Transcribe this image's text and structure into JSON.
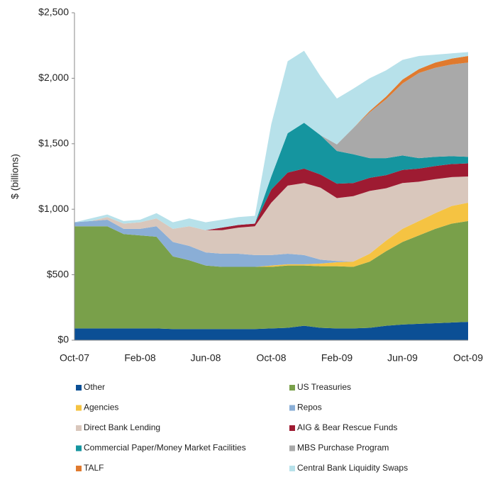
{
  "chart_data": {
    "type": "stacked_area",
    "ylabel": "$ (billions)",
    "categories": [
      "Oct-07",
      null,
      null,
      null,
      "Feb-08",
      null,
      null,
      null,
      "Jun-08",
      null,
      null,
      null,
      "Oct-08",
      null,
      null,
      null,
      "Feb-09",
      null,
      null,
      null,
      "Jun-09",
      null,
      null,
      null,
      "Oct-09"
    ],
    "ylim": [
      0,
      2500
    ],
    "yticks": [
      {
        "value": 0,
        "label": "$0"
      },
      {
        "value": 500,
        "label": "$500"
      },
      {
        "value": 1000,
        "label": "$1,000"
      },
      {
        "value": 1500,
        "label": "$1,500"
      },
      {
        "value": 2000,
        "label": "$2,000"
      },
      {
        "value": 2500,
        "label": "$2,500"
      }
    ],
    "series": [
      {
        "name": "Other",
        "color": "#0b4f95",
        "values": [
          90,
          90,
          90,
          90,
          90,
          90,
          85,
          85,
          85,
          85,
          85,
          85,
          90,
          95,
          110,
          95,
          90,
          90,
          95,
          110,
          120,
          125,
          130,
          135,
          140
        ]
      },
      {
        "name": "US Treasuries",
        "color": "#79a04a",
        "values": [
          780,
          780,
          780,
          720,
          710,
          700,
          555,
          525,
          485,
          475,
          475,
          475,
          470,
          475,
          460,
          470,
          475,
          470,
          505,
          570,
          630,
          675,
          720,
          755,
          770
        ]
      },
      {
        "name": "Agencies",
        "color": "#f5c342",
        "values": [
          0,
          0,
          0,
          0,
          0,
          0,
          0,
          0,
          0,
          0,
          0,
          0,
          10,
          10,
          10,
          20,
          30,
          40,
          60,
          80,
          100,
          110,
          120,
          135,
          140
        ]
      },
      {
        "name": "Repos",
        "color": "#8aaed6",
        "values": [
          30,
          40,
          50,
          40,
          50,
          80,
          110,
          110,
          100,
          100,
          100,
          90,
          80,
          80,
          70,
          30,
          10,
          0,
          0,
          0,
          0,
          0,
          0,
          0,
          0
        ]
      },
      {
        "name": "Direct Bank Lending",
        "color": "#d9c7bc",
        "values": [
          0,
          0,
          20,
          40,
          50,
          60,
          100,
          150,
          170,
          180,
          200,
          220,
          400,
          520,
          550,
          550,
          480,
          500,
          480,
          400,
          350,
          300,
          260,
          220,
          200
        ]
      },
      {
        "name": "AIG & Bear Rescue Funds",
        "color": "#9e1b32",
        "values": [
          0,
          0,
          0,
          0,
          0,
          0,
          0,
          0,
          0,
          20,
          20,
          20,
          100,
          100,
          110,
          100,
          110,
          100,
          100,
          100,
          100,
          100,
          100,
          100,
          100
        ]
      },
      {
        "name": "Commercial Paper/Money Market Facilities",
        "color": "#15959f",
        "values": [
          0,
          0,
          0,
          0,
          0,
          0,
          0,
          0,
          0,
          0,
          0,
          0,
          100,
          300,
          350,
          300,
          250,
          220,
          150,
          130,
          110,
          80,
          70,
          60,
          50
        ]
      },
      {
        "name": "MBS Purchase Program",
        "color": "#a9a9a9",
        "values": [
          0,
          0,
          0,
          0,
          0,
          0,
          0,
          0,
          0,
          0,
          0,
          0,
          0,
          0,
          0,
          0,
          50,
          200,
          350,
          450,
          550,
          650,
          680,
          700,
          720
        ]
      },
      {
        "name": "TALF",
        "color": "#e07a2e",
        "values": [
          0,
          0,
          0,
          0,
          0,
          0,
          0,
          0,
          0,
          0,
          0,
          0,
          0,
          0,
          0,
          0,
          0,
          0,
          10,
          20,
          30,
          30,
          40,
          45,
          50
        ]
      },
      {
        "name": "Central Bank Liquidity Swaps",
        "color": "#b7e1ea",
        "values": [
          0,
          20,
          20,
          20,
          20,
          40,
          50,
          60,
          60,
          60,
          60,
          60,
          400,
          550,
          550,
          450,
          350,
          300,
          250,
          200,
          150,
          100,
          60,
          40,
          30
        ]
      }
    ]
  }
}
